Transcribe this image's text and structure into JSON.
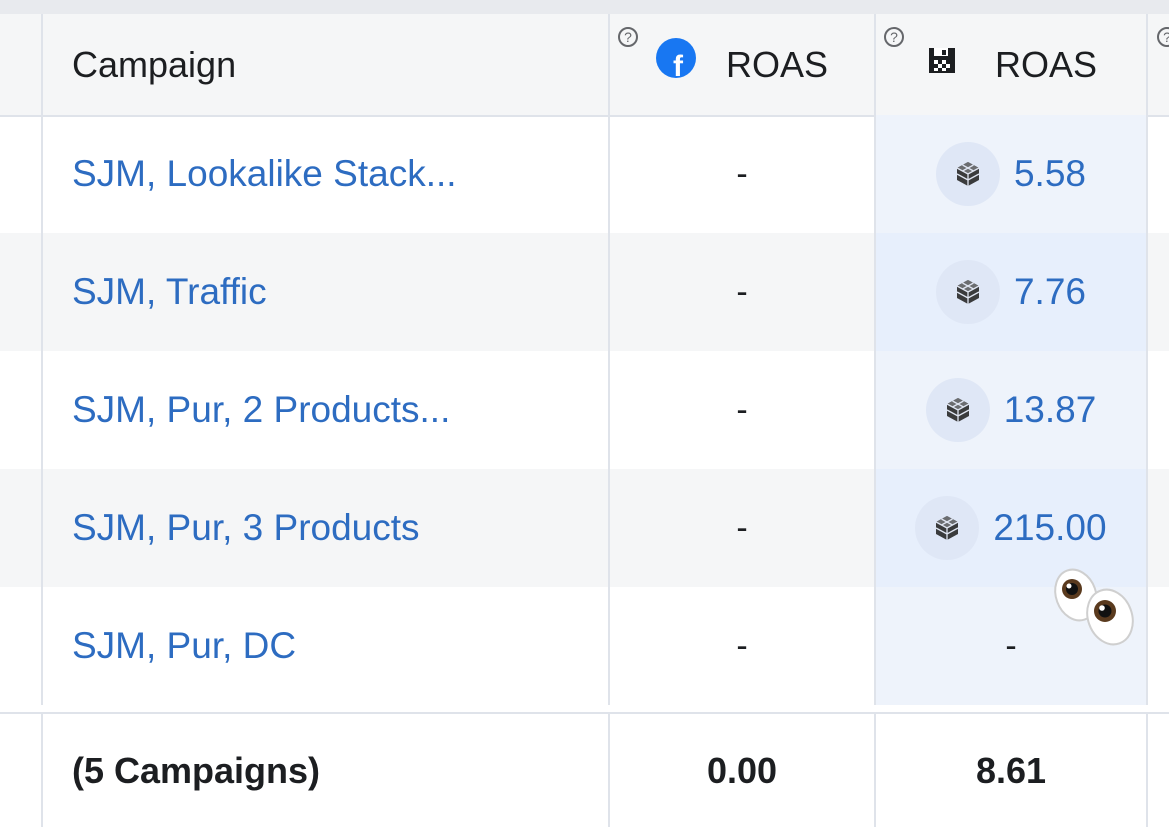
{
  "header": {
    "campaign_label": "Campaign",
    "col_fb_roas_label": "ROAS",
    "col_db_roas_label": "ROAS",
    "help_glyph": "?",
    "fb_glyph": "f"
  },
  "rows": [
    {
      "campaign": "SJM, Lookalike Stack...",
      "fb_roas": "-",
      "db_roas": "5.58"
    },
    {
      "campaign": "SJM, Traffic",
      "fb_roas": "-",
      "db_roas": "7.76"
    },
    {
      "campaign": "SJM, Pur, 2 Products...",
      "fb_roas": "-",
      "db_roas": "13.87"
    },
    {
      "campaign": "SJM, Pur, 3 Products",
      "fb_roas": "-",
      "db_roas": "215.00"
    },
    {
      "campaign": "SJM, Pur, DC",
      "fb_roas": "-",
      "db_roas": "-"
    }
  ],
  "footer": {
    "summary_label": "(5 Campaigns)",
    "fb_roas_total": "0.00",
    "db_roas_total": "8.61"
  },
  "icons": {
    "help": "help-circle-icon",
    "facebook": "facebook-icon",
    "data_source": "database-icon",
    "cube": "cube-icon",
    "emoji": "eyes-emoji"
  },
  "colors": {
    "link": "#2d6cc1",
    "facebook_blue": "#1877f2",
    "highlight_column": "#e7effc"
  }
}
